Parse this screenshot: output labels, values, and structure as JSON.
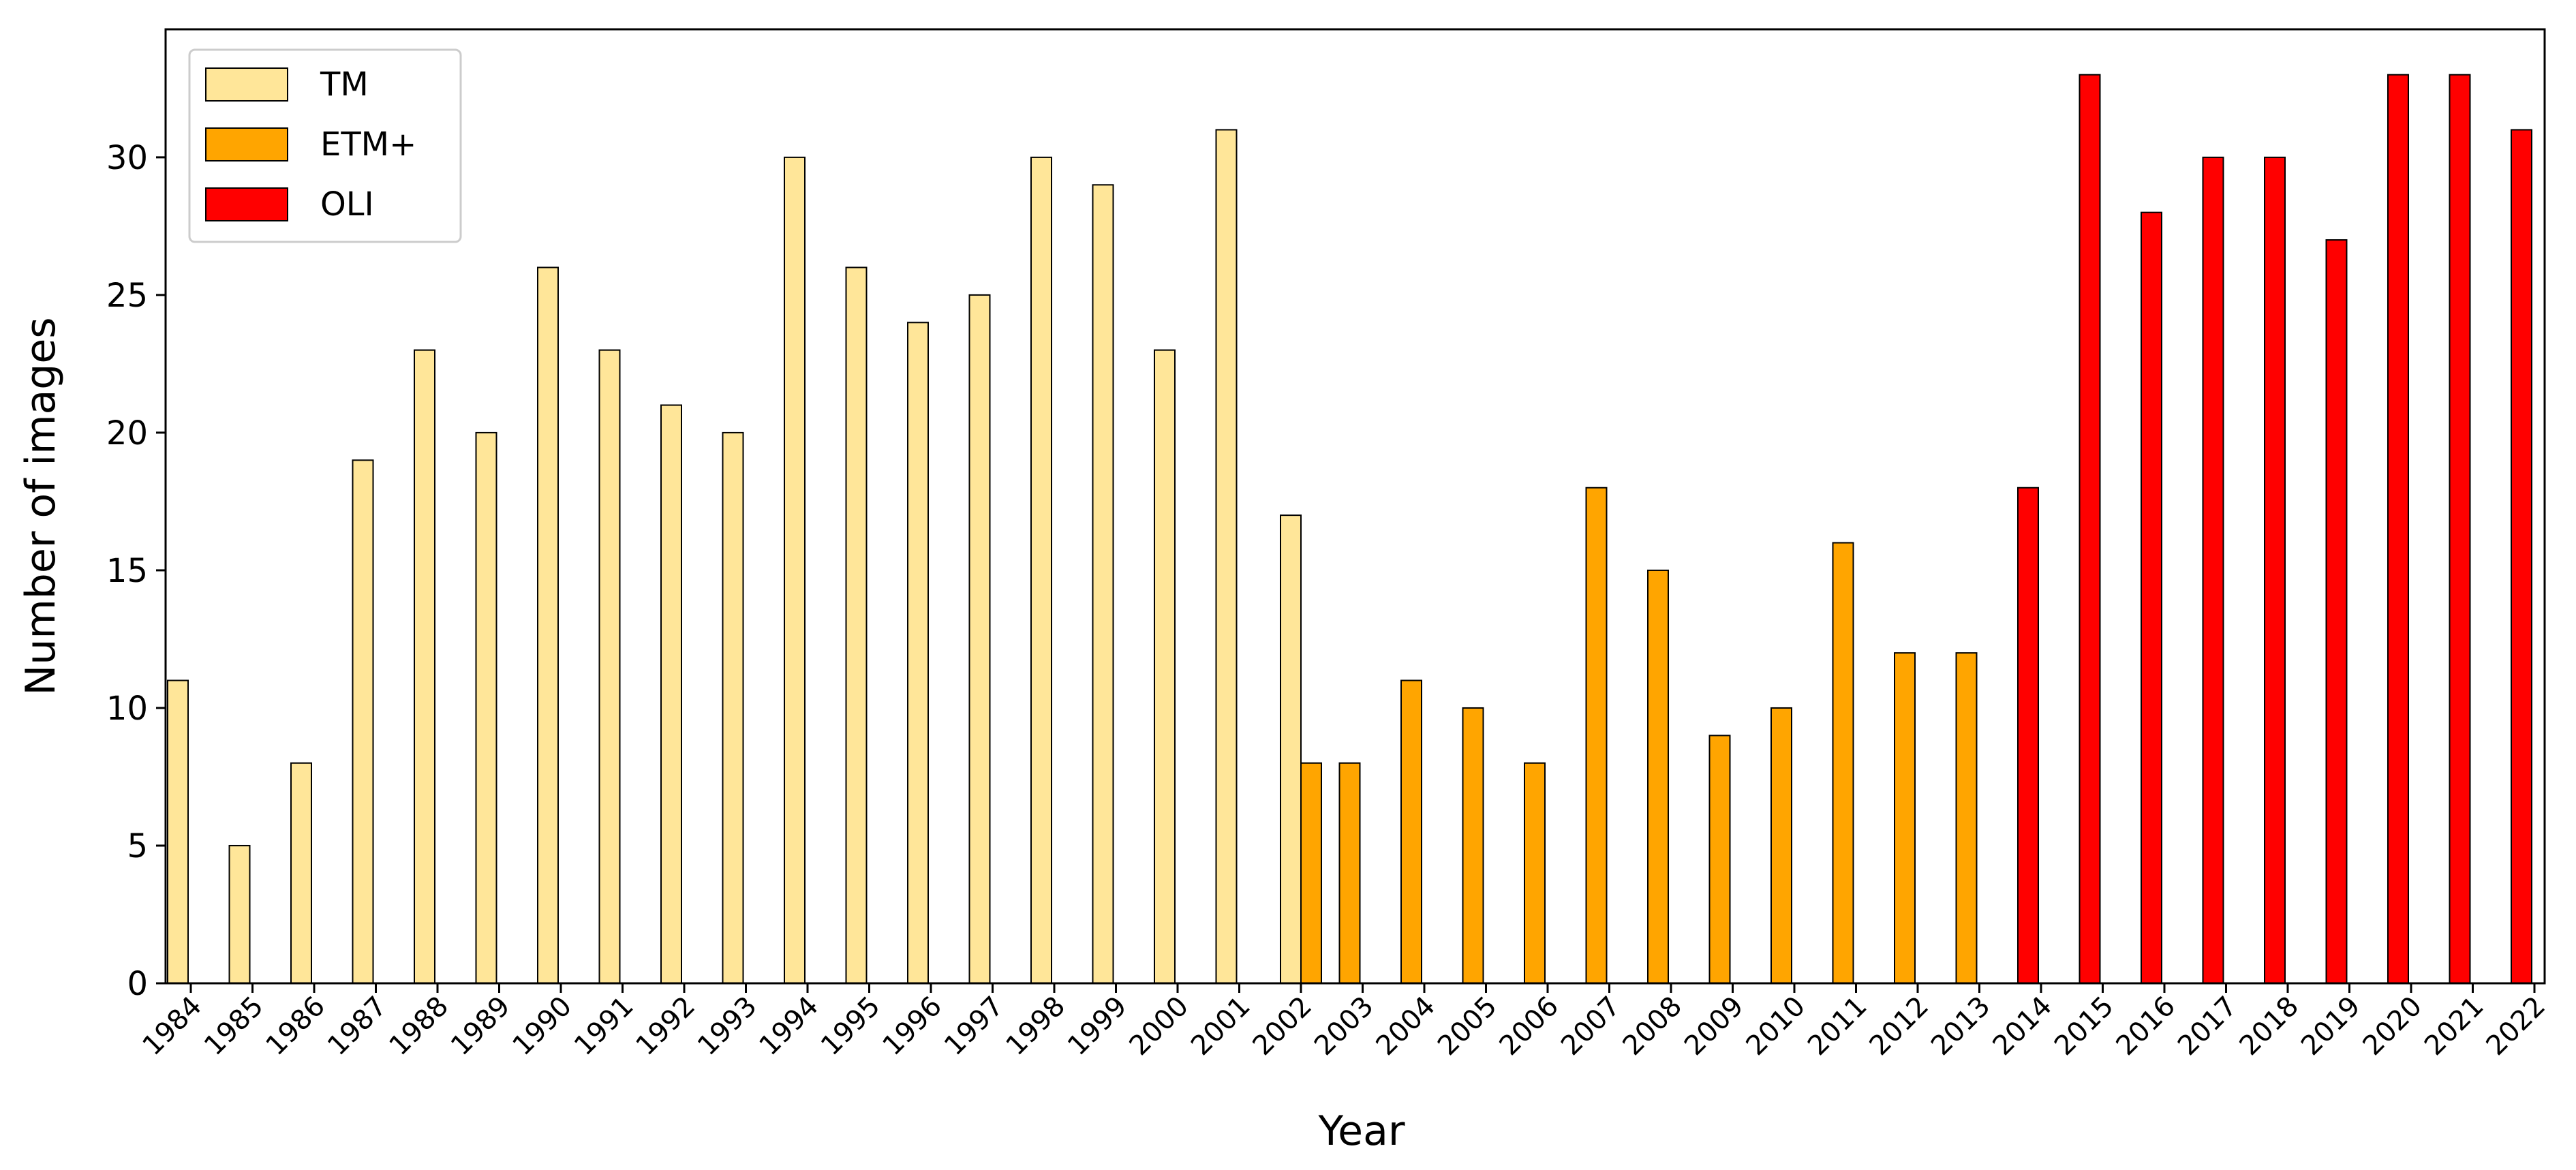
{
  "chart_data": {
    "type": "bar",
    "title": "",
    "xlabel": "Year",
    "ylabel": "Number of images",
    "ylim": [
      0,
      34.65
    ],
    "yticks": [
      0,
      5,
      10,
      15,
      20,
      25,
      30
    ],
    "categories": [
      "1984",
      "1985",
      "1986",
      "1987",
      "1988",
      "1989",
      "1990",
      "1991",
      "1992",
      "1993",
      "1994",
      "1995",
      "1996",
      "1997",
      "1998",
      "1999",
      "2000",
      "2001",
      "2002",
      "2003",
      "2004",
      "2005",
      "2006",
      "2007",
      "2008",
      "2009",
      "2010",
      "2011",
      "2012",
      "2013",
      "2014",
      "2015",
      "2016",
      "2017",
      "2018",
      "2019",
      "2020",
      "2021",
      "2022"
    ],
    "series": [
      {
        "name": "TM",
        "color": "#FFE699",
        "values": [
          11,
          5,
          8,
          19,
          23,
          20,
          26,
          23,
          21,
          20,
          30,
          26,
          24,
          25,
          30,
          29,
          23,
          31,
          17,
          0,
          0,
          0,
          0,
          0,
          0,
          0,
          0,
          0,
          0,
          0,
          0,
          0,
          0,
          0,
          0,
          0,
          0,
          0,
          0
        ]
      },
      {
        "name": "ETM+",
        "color": "#FFA500",
        "values": [
          0,
          0,
          0,
          0,
          0,
          0,
          0,
          0,
          0,
          0,
          0,
          0,
          0,
          0,
          0,
          0,
          0,
          0,
          8,
          8,
          11,
          10,
          8,
          18,
          15,
          9,
          10,
          16,
          12,
          12,
          0,
          0,
          0,
          0,
          0,
          0,
          0,
          0,
          0
        ]
      },
      {
        "name": "OLI",
        "color": "#FF0000",
        "values": [
          0,
          0,
          0,
          0,
          0,
          0,
          0,
          0,
          0,
          0,
          0,
          0,
          0,
          0,
          0,
          0,
          0,
          0,
          0,
          0,
          0,
          0,
          0,
          0,
          0,
          0,
          0,
          0,
          0,
          0,
          18,
          33,
          28,
          30,
          30,
          27,
          33,
          33,
          31
        ]
      }
    ],
    "legend": {
      "placement": "top-left",
      "entries": [
        "TM",
        "ETM+",
        "OLI"
      ]
    },
    "grid": false
  }
}
